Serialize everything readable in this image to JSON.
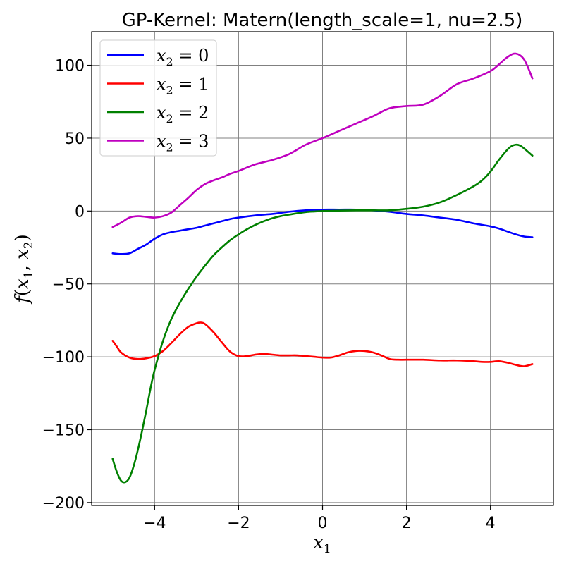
{
  "chart_data": {
    "type": "line",
    "title": "GP-Kernel: Matern(length_scale=1, nu=2.5)",
    "xlabel": "x1",
    "ylabel": "f(x1, x2)",
    "xlim": [
      -5.5,
      5.5
    ],
    "ylim": [
      -202,
      123
    ],
    "xticks": [
      -4,
      -2,
      0,
      2,
      4
    ],
    "yticks": [
      -200,
      -150,
      -100,
      -50,
      0,
      50,
      100
    ],
    "xtick_labels": [
      "−4",
      "−2",
      "0",
      "2",
      "4"
    ],
    "ytick_labels": [
      "−200",
      "−150",
      "−100",
      "−50",
      "0",
      "50",
      "100"
    ],
    "grid": true,
    "legend_position": "top-left",
    "series": [
      {
        "name": "x2 = 0",
        "color": "#0000ff",
        "x": [
          -5,
          -4.8,
          -4.6,
          -4.4,
          -4.2,
          -4,
          -3.8,
          -3.6,
          -3.4,
          -3.2,
          -3,
          -2.8,
          -2.6,
          -2.4,
          -2.2,
          -2,
          -1.6,
          -1.2,
          -0.8,
          -0.4,
          0,
          0.4,
          0.8,
          1.2,
          1.6,
          2,
          2.4,
          2.8,
          3.2,
          3.6,
          4,
          4.2,
          4.4,
          4.6,
          4.8,
          5
        ],
        "y": [
          -29,
          -29.5,
          -29,
          -26,
          -23,
          -19,
          -16,
          -14.5,
          -13.5,
          -12.5,
          -11.5,
          -10,
          -8.5,
          -7,
          -5.5,
          -4.5,
          -3,
          -2,
          -0.5,
          0.5,
          1,
          1,
          1,
          0.5,
          -0.5,
          -2,
          -3,
          -4.5,
          -6,
          -8.5,
          -10.5,
          -12,
          -14,
          -16,
          -17.5,
          -18
        ]
      },
      {
        "name": "x2 = 1",
        "color": "#ff0000",
        "x": [
          -5,
          -4.9,
          -4.8,
          -4.6,
          -4.4,
          -4.2,
          -4,
          -3.8,
          -3.6,
          -3.4,
          -3.2,
          -3,
          -2.9,
          -2.8,
          -2.6,
          -2.4,
          -2.2,
          -2,
          -1.8,
          -1.6,
          -1.4,
          -1.2,
          -1,
          -0.8,
          -0.6,
          -0.4,
          -0.2,
          0,
          0.2,
          0.4,
          0.6,
          0.8,
          1,
          1.2,
          1.4,
          1.6,
          1.8,
          2,
          2.4,
          2.8,
          3.2,
          3.6,
          3.8,
          4,
          4.2,
          4.4,
          4.6,
          4.8,
          5
        ],
        "y": [
          -89,
          -93,
          -97,
          -100.5,
          -101.5,
          -101,
          -99.5,
          -96,
          -90.5,
          -84.5,
          -79.5,
          -77,
          -76.5,
          -77.5,
          -83,
          -90,
          -96.5,
          -99.5,
          -99.5,
          -98.5,
          -98,
          -98.5,
          -99,
          -99,
          -99,
          -99.5,
          -100,
          -100.5,
          -100.5,
          -99,
          -97,
          -96,
          -96,
          -97,
          -99,
          -101.5,
          -102,
          -102,
          -102,
          -102.5,
          -102.5,
          -103,
          -103.5,
          -103.5,
          -103,
          -104,
          -105.5,
          -106.5,
          -105
        ]
      },
      {
        "name": "x2 = 2",
        "color": "#008000",
        "x": [
          -5,
          -4.9,
          -4.8,
          -4.7,
          -4.6,
          -4.5,
          -4.4,
          -4.3,
          -4.2,
          -4.1,
          -4,
          -3.8,
          -3.6,
          -3.4,
          -3.2,
          -3,
          -2.8,
          -2.6,
          -2.4,
          -2.2,
          -2,
          -1.8,
          -1.6,
          -1.4,
          -1.2,
          -1,
          -0.8,
          -0.6,
          -0.4,
          -0.2,
          0,
          0.4,
          0.8,
          1.2,
          1.6,
          2,
          2.4,
          2.8,
          3.2,
          3.6,
          3.8,
          4,
          4.2,
          4.4,
          4.5,
          4.6,
          4.7,
          4.8,
          4.9,
          5
        ],
        "y": [
          -170,
          -179,
          -185,
          -186,
          -183,
          -175,
          -164,
          -151,
          -137,
          -122,
          -109,
          -89,
          -74,
          -63,
          -53.5,
          -45,
          -37.5,
          -30.5,
          -25,
          -20,
          -16,
          -12.5,
          -9.5,
          -7,
          -5,
          -3.5,
          -2.5,
          -1.5,
          -0.7,
          -0.3,
          0,
          0.3,
          0.5,
          0.5,
          0.5,
          1.5,
          3,
          6,
          11,
          17,
          21,
          27,
          35,
          42,
          44.5,
          45.5,
          45,
          43,
          40.5,
          38
        ]
      },
      {
        "name": "x2 = 3",
        "color": "#bf00bf",
        "x": [
          -5,
          -4.8,
          -4.6,
          -4.4,
          -4.2,
          -4,
          -3.8,
          -3.6,
          -3.4,
          -3.2,
          -3,
          -2.8,
          -2.6,
          -2.4,
          -2.2,
          -2,
          -1.6,
          -1.2,
          -0.8,
          -0.4,
          0,
          0.4,
          0.8,
          1.2,
          1.6,
          2,
          2.4,
          2.8,
          3.2,
          3.6,
          4,
          4.2,
          4.4,
          4.6,
          4.8,
          5
        ],
        "y": [
          -11,
          -8,
          -4.5,
          -3.5,
          -4,
          -4.5,
          -3.5,
          -1,
          4,
          9,
          14.5,
          18.5,
          21,
          23,
          25.5,
          27.5,
          32,
          35,
          39,
          45.5,
          50,
          55,
          60,
          65,
          70.5,
          72,
          73,
          79,
          87,
          91,
          96,
          100.5,
          105.5,
          108,
          104,
          91
        ]
      }
    ]
  }
}
